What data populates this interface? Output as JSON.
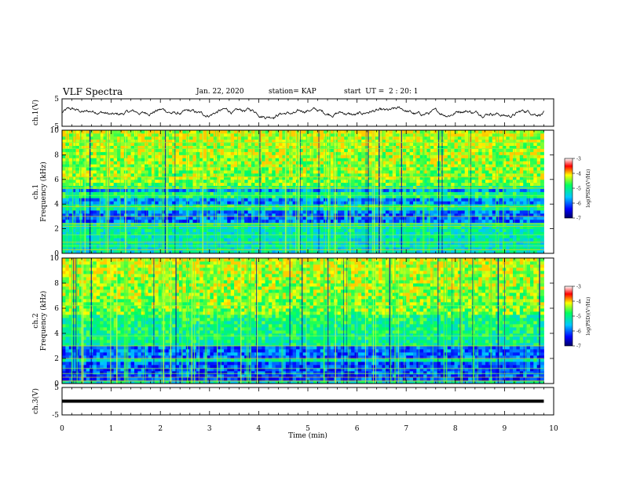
{
  "header": {
    "title": "VLF Spectra",
    "date": "Jan. 22, 2020",
    "station": "station= KAP",
    "start": "start  UT =  2 : 20: 1"
  },
  "chart_data": [
    {
      "type": "line",
      "panel": "ch1-waveform",
      "ylabel": "ch.1(V)",
      "ylim": [
        -5,
        5
      ],
      "yticks": [
        "5",
        "-5"
      ],
      "xlim": [
        0,
        10
      ],
      "x_extent_min": 9.8,
      "mean": 0,
      "amplitude_v": 1.5,
      "color": "#000000"
    },
    {
      "type": "heatmap",
      "panel": "ch1-spectrogram",
      "ylabel": "ch.1\nFrequency (kHz)",
      "ylim": [
        0,
        10
      ],
      "yticks": [
        "0",
        "2",
        "4",
        "6",
        "8",
        "10"
      ],
      "xlim": [
        0,
        10
      ],
      "x_extent_min": 9.8,
      "dark_bands_khz": [
        [
          2.5,
          3.5
        ],
        [
          4.0,
          4.4
        ],
        [
          5.0,
          5.3
        ]
      ],
      "lines_khz": [
        0.3,
        0.6,
        0.9,
        1.5,
        2.2,
        2.4,
        3.0,
        3.8,
        4.7,
        5.3,
        6.2,
        7.0,
        8.5,
        9.0
      ],
      "colorbar": {
        "label": "log(PSD)(V²/Hz)",
        "range": [
          -7,
          -3
        ],
        "ticks": [
          "-3",
          "-4",
          "-5",
          "-6",
          "-7"
        ]
      }
    },
    {
      "type": "heatmap",
      "panel": "ch2-spectrogram",
      "ylabel": "ch.2\nFrequency (kHz)",
      "ylim": [
        0,
        10
      ],
      "yticks": [
        "0",
        "2",
        "4",
        "6",
        "8",
        "10"
      ],
      "xlim": [
        0,
        10
      ],
      "x_extent_min": 9.8,
      "dark_bands_khz": [
        [
          0.3,
          1.8
        ],
        [
          2.0,
          3.0
        ]
      ],
      "lines_khz": [
        0.2,
        0.5,
        0.8,
        1.2,
        2.0,
        3.0,
        3.8,
        6.2
      ],
      "colorbar": {
        "label": "log(PSD)(V²/Hz)",
        "range": [
          -7,
          -3
        ],
        "ticks": [
          "-3",
          "-4",
          "-5",
          "-6",
          "-7"
        ]
      }
    },
    {
      "type": "line",
      "panel": "ch3-waveform",
      "ylabel": "ch.3(V)",
      "ylim": [
        -5,
        5
      ],
      "yticks": [
        "5",
        "-5"
      ],
      "xlim": [
        0,
        10
      ],
      "x_extent_min": 9.8,
      "value_v": 0,
      "color": "#000000"
    }
  ],
  "xaxis": {
    "label": "Time (min)",
    "ticks": [
      "0",
      "1",
      "2",
      "3",
      "4",
      "5",
      "6",
      "7",
      "8",
      "9",
      "10"
    ]
  }
}
